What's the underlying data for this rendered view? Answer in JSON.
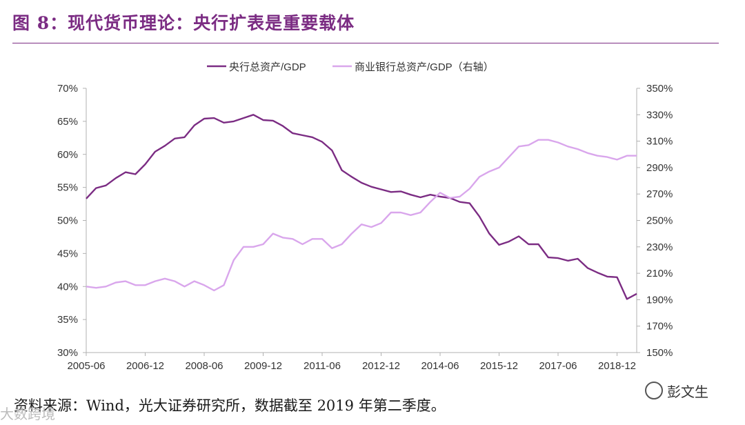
{
  "figure_title": "图 8：现代货币理论：央行扩表是重要载体",
  "source_note": "资料来源：Wind，光大证券研究所，数据截至 2019 年第二季度。",
  "watermark": "彭文生",
  "watermark2": "大数跨境",
  "colors": {
    "title": "#7B2C83",
    "series_cb": "#7B2C83",
    "series_bank": "#D9A6EC",
    "axis": "#B0B0B0"
  },
  "chart_data": {
    "type": "line",
    "title": "",
    "legend_position": "top-center",
    "x_tick_labels": [
      "2005-06",
      "2006-12",
      "2008-06",
      "2009-12",
      "2011-06",
      "2012-12",
      "2014-06",
      "2015-12",
      "2017-06",
      "2018-12"
    ],
    "x_start": "2005-06",
    "x_end": "2019-06",
    "x_unit": "quarter",
    "y_left": {
      "min": 30,
      "max": 70,
      "step": 5,
      "tick_labels": [
        "70%",
        "65%",
        "60%",
        "55%",
        "50%",
        "45%",
        "40%",
        "35%",
        "30%"
      ]
    },
    "y_right": {
      "min": 150,
      "max": 350,
      "step": 20,
      "tick_labels": [
        "350%",
        "330%",
        "310%",
        "290%",
        "270%",
        "250%",
        "230%",
        "210%",
        "190%",
        "170%",
        "150%"
      ]
    },
    "series": [
      {
        "name": "央行总资产/GDP",
        "axis": "left",
        "values": [
          53.3,
          54.9,
          55.3,
          56.4,
          57.3,
          57.0,
          58.5,
          60.4,
          61.3,
          62.4,
          62.6,
          64.4,
          65.4,
          65.5,
          64.8,
          65.0,
          65.5,
          66.0,
          65.2,
          65.1,
          64.3,
          63.2,
          62.9,
          62.6,
          61.9,
          60.6,
          57.6,
          56.6,
          55.7,
          55.1,
          54.7,
          54.3,
          54.4,
          53.9,
          53.5,
          53.9,
          53.6,
          53.4,
          52.8,
          52.6,
          50.6,
          48.0,
          46.3,
          46.8,
          47.6,
          46.4,
          46.4,
          44.4,
          44.3,
          43.9,
          44.2,
          42.8,
          42.1,
          41.5,
          41.4,
          38.1,
          38.9
        ]
      },
      {
        "name": "商业银行总资产/GDP（右轴）",
        "axis": "right",
        "values": [
          200,
          199,
          200,
          203,
          204,
          201,
          201,
          204,
          206,
          204,
          200,
          204,
          201,
          197,
          201,
          220,
          230,
          230,
          232,
          240,
          237,
          236,
          232,
          236,
          236,
          229,
          232,
          240,
          247,
          245,
          248,
          256,
          256,
          254,
          256,
          264,
          271,
          267,
          268,
          274,
          283,
          287,
          290,
          298,
          306,
          307,
          311,
          311,
          309,
          306,
          304,
          301,
          299,
          298,
          296,
          299,
          299
        ]
      }
    ]
  }
}
